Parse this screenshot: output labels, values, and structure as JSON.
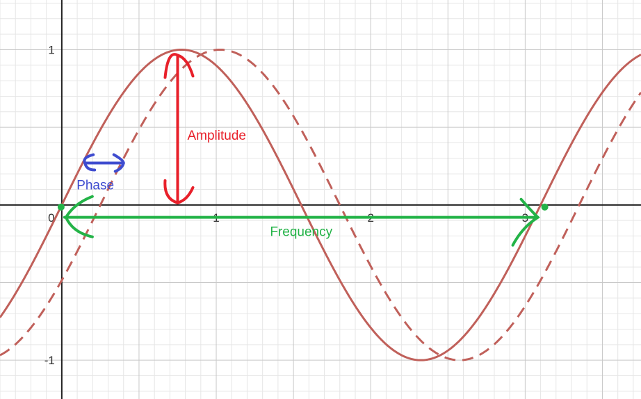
{
  "colors": {
    "curve": "#c0605a",
    "amplitude": "#e8202a",
    "phase": "#3f4ccf",
    "frequency": "#23b347",
    "grid_minor": "#e6e6e6",
    "grid_major": "#c8c8c8",
    "axis": "#222222"
  },
  "chart_data": {
    "type": "line",
    "title": "",
    "xlabel": "",
    "ylabel": "",
    "xlim": [
      -0.4,
      3.75
    ],
    "ylim": [
      -1.25,
      1.32
    ],
    "grid": true,
    "x_ticks": [
      {
        "value": 0,
        "label": "0"
      },
      {
        "value": 1,
        "label": "1"
      },
      {
        "value": 2,
        "label": "2"
      },
      {
        "value": 3,
        "label": "3"
      }
    ],
    "y_ticks": [
      {
        "value": 1,
        "label": "1"
      },
      {
        "value": -1,
        "label": "-1"
      }
    ],
    "series": [
      {
        "style": "solid",
        "function": "sine",
        "amplitude": 1,
        "period": 3.1,
        "phase_shift": 0
      },
      {
        "style": "dashed",
        "function": "sine",
        "amplitude": 1,
        "period": 3.1,
        "phase_shift": 0.25
      }
    ],
    "annotations": {
      "amplitude": {
        "text": "Amplitude",
        "x": 0.75,
        "y_from": 0,
        "y_to": 1
      },
      "phase": {
        "text": "Phase",
        "x_from": 0.15,
        "x_to": 0.4,
        "y": 0.27
      },
      "frequency": {
        "text": "Frequency",
        "x_from": 0,
        "x_to": 3.1,
        "y": -0.08
      }
    }
  }
}
